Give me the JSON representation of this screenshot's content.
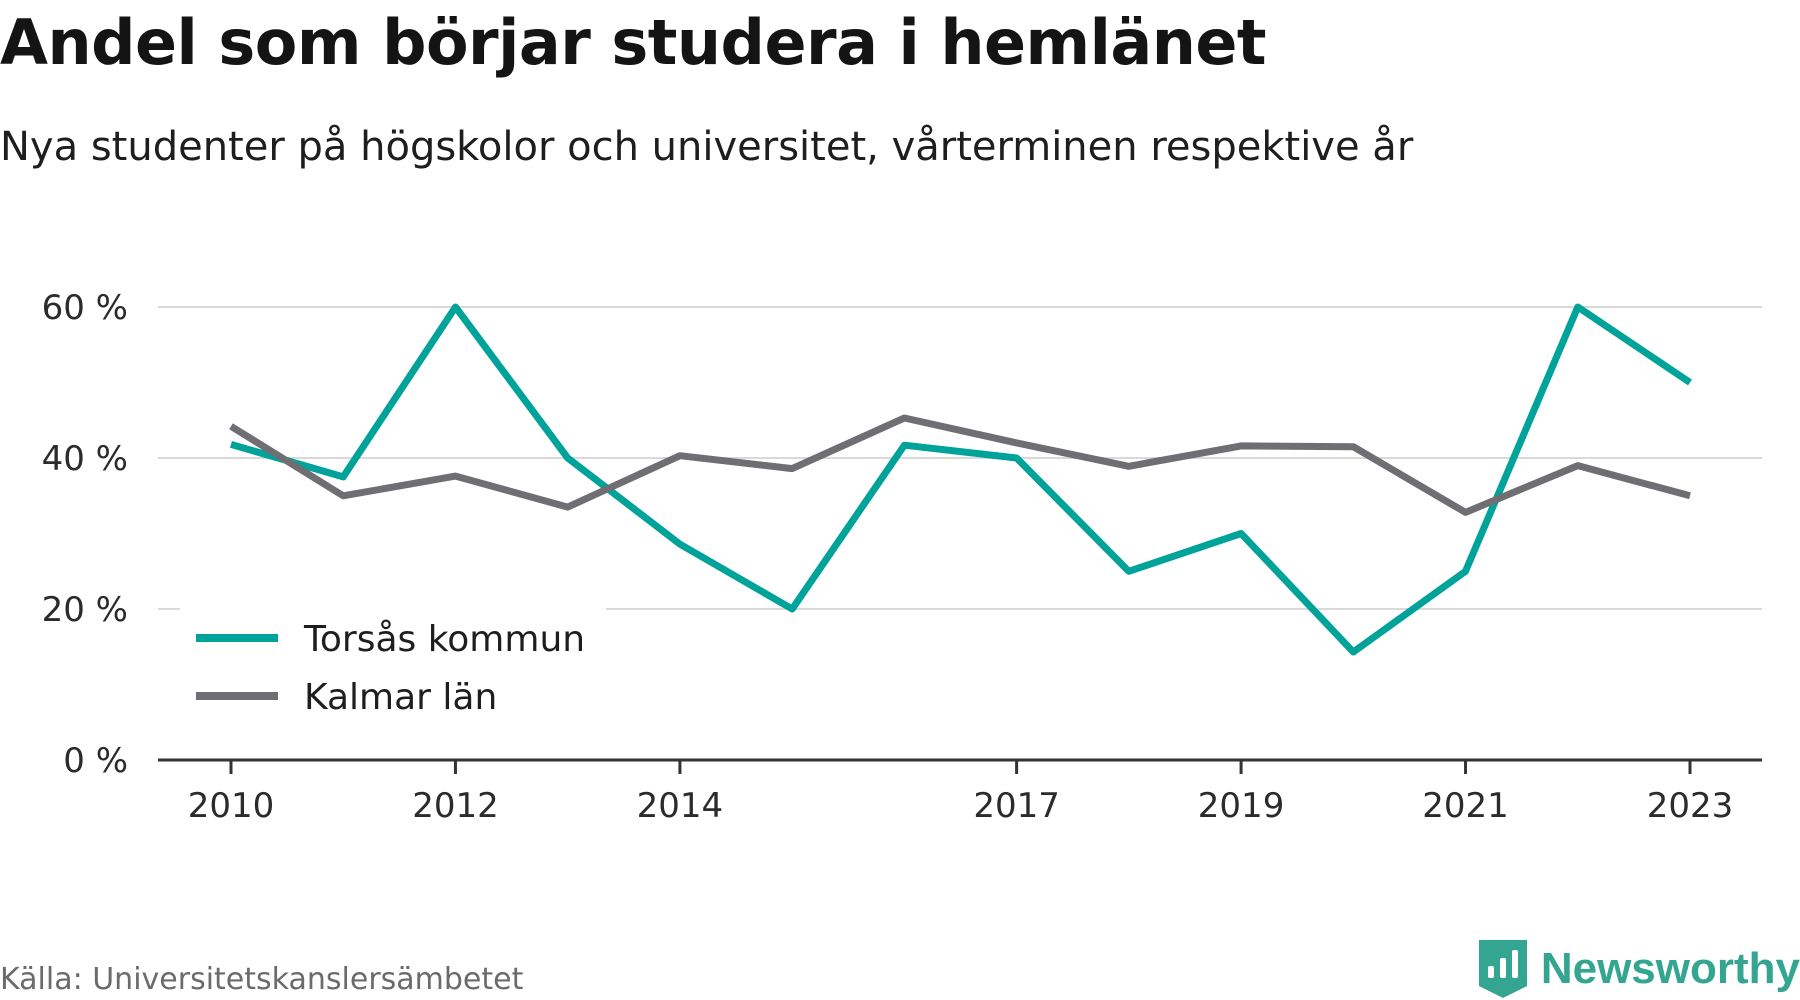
{
  "header": {
    "title": "Andel som börjar studera i hemlänet",
    "subtitle": "Nya studenter på högskolor och universitet, vårterminen respektive år"
  },
  "footer": {
    "source": "Källa: Universitetskanslersämbetet",
    "brand": "Newsworthy",
    "brand_icon": "bar-chart-shield-icon",
    "brand_color": "#34a590"
  },
  "chart_data": {
    "type": "line",
    "title": "Andel som börjar studera i hemlänet",
    "subtitle": "Nya studenter på högskolor och universitet, vårterminen respektive år",
    "xlabel": "",
    "ylabel": "",
    "x": [
      2010,
      2011,
      2012,
      2013,
      2014,
      2015,
      2016,
      2017,
      2018,
      2019,
      2020,
      2021,
      2022,
      2023
    ],
    "xticks": [
      2010,
      2012,
      2014,
      2017,
      2019,
      2021,
      2023
    ],
    "xtick_labels": [
      "2010",
      "2012",
      "2014",
      "2017",
      "2019",
      "2021",
      "2023"
    ],
    "ylim": [
      0,
      60
    ],
    "yticks": [
      0,
      20,
      40,
      60
    ],
    "ytick_labels": [
      "0 %",
      "20 %",
      "40 %",
      "60 %"
    ],
    "grid": "horizontal",
    "legend_position": "bottom-left",
    "series": [
      {
        "name": "Torsås kommun",
        "color": "#00a39a",
        "values": [
          41.8,
          37.5,
          60.0,
          40.0,
          28.6,
          20.0,
          41.7,
          40.0,
          25.0,
          30.0,
          14.3,
          25.0,
          60.0,
          50.0
        ]
      },
      {
        "name": "Kalmar län",
        "color": "#6e6e73",
        "values": [
          44.2,
          35.0,
          37.6,
          33.5,
          40.3,
          38.6,
          45.3,
          42.0,
          38.9,
          41.6,
          41.5,
          32.8,
          39.0,
          35.0
        ]
      }
    ]
  }
}
